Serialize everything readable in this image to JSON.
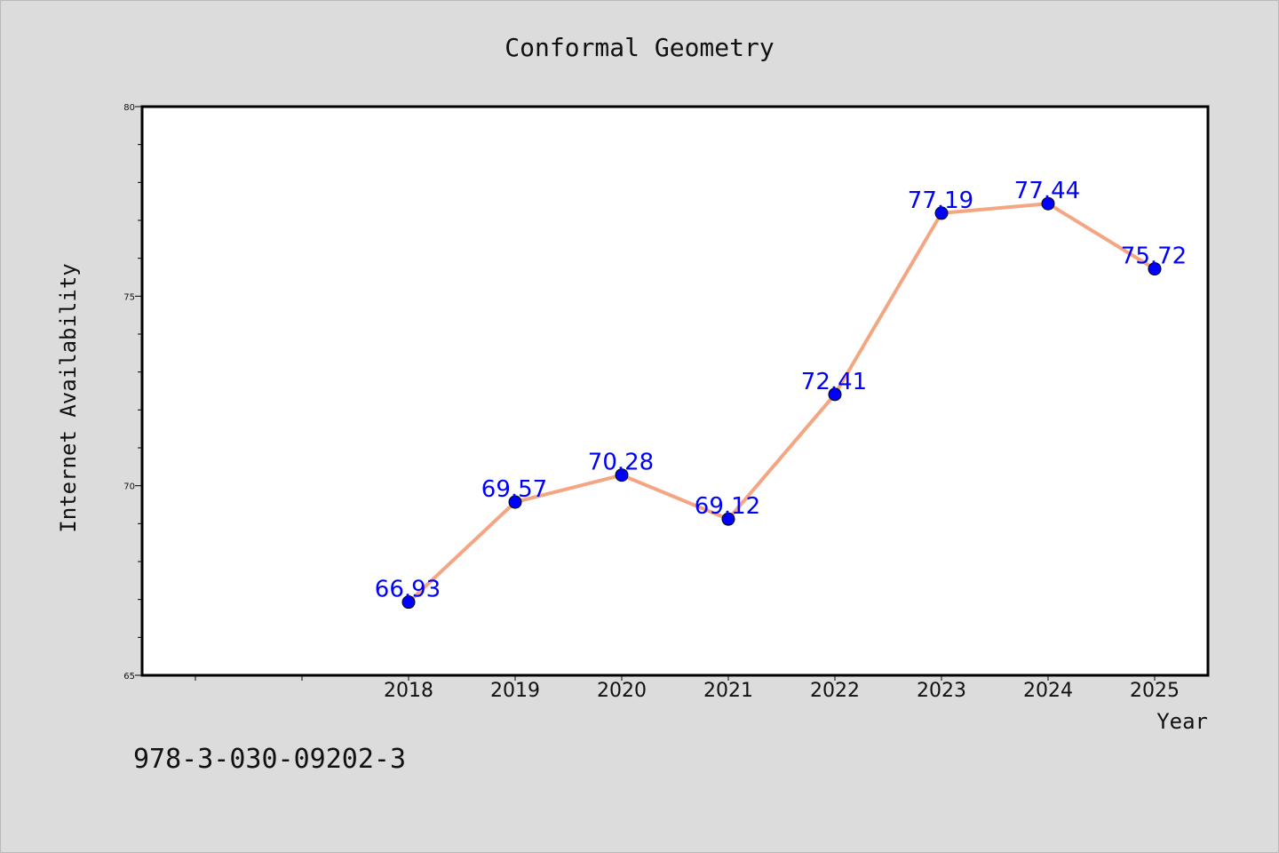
{
  "chart_data": {
    "type": "line",
    "title": "Conformal Geometry",
    "xlabel": "Year",
    "ylabel": "Internet Availability",
    "categories": [
      "2018",
      "2019",
      "2020",
      "2021",
      "2022",
      "2023",
      "2024",
      "2025"
    ],
    "series": [
      {
        "values": [
          66.93,
          69.57,
          70.28,
          69.12,
          72.41,
          77.19,
          77.44,
          75.72
        ]
      }
    ],
    "data_labels": [
      "66.93",
      "69.57",
      "70.28",
      "69.12",
      "72.41",
      "77.19",
      "77.44",
      "75.72"
    ],
    "ylim": [
      65,
      80
    ],
    "yticks": [
      65,
      70,
      75,
      80
    ],
    "grid": false,
    "line_color": "#f4a582",
    "marker_color": "#0000ff",
    "label_color": "#0000ff"
  },
  "footer": {
    "code": "978-3-030-09202-3"
  }
}
